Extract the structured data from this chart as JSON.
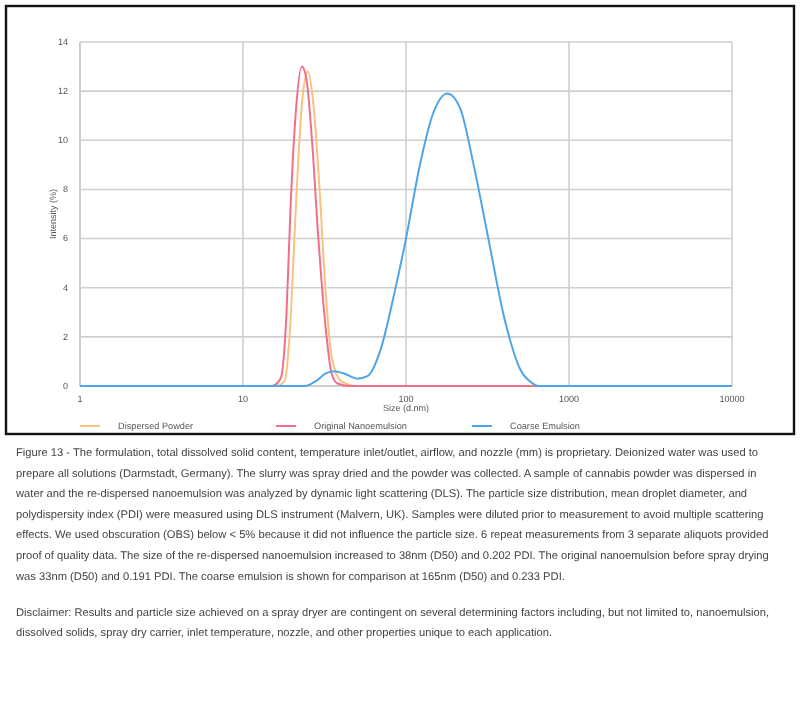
{
  "chart_data": {
    "type": "line",
    "xlabel": "Size (d.nm)",
    "ylabel": "Intensity (%)",
    "log": "x",
    "xlim": [
      1,
      10000
    ],
    "xticks": [
      1,
      10,
      100,
      1000,
      10000
    ],
    "ylim": [
      0,
      14
    ],
    "yticks": [
      0,
      2,
      4,
      6,
      8,
      10,
      12,
      14
    ],
    "grid": true,
    "legend": "bottom",
    "marker": "none",
    "line_style": "solid",
    "series": [
      {
        "name": "Dispersed Powder",
        "color": "#f8c37e",
        "x": [
          1,
          16,
          18,
          19.5,
          21,
          23,
          25,
          27,
          29.5,
          32,
          35,
          40,
          50,
          10000
        ],
        "values": [
          0,
          0,
          0.2,
          2.5,
          7,
          11.5,
          12.8,
          11.5,
          8,
          4,
          1.2,
          0.2,
          0,
          0
        ]
      },
      {
        "name": "Original Nanoemulsion",
        "color": "#f0708c",
        "x": [
          1,
          15,
          17,
          18.5,
          19.5,
          21,
          23,
          24.5,
          26.5,
          29,
          32,
          35,
          38,
          45,
          10000
        ],
        "values": [
          0,
          0,
          0.3,
          3,
          7,
          11,
          13,
          12.5,
          10,
          6,
          2.5,
          0.5,
          0.1,
          0,
          0
        ]
      },
      {
        "name": "Coarse Emulsion",
        "color": "#4ea5e8",
        "x": [
          1,
          24,
          28,
          32,
          36,
          42,
          50,
          58,
          70,
          85,
          100,
          120,
          145,
          180,
          215,
          260,
          320,
          400,
          500,
          600,
          650,
          10000
        ],
        "values": [
          0,
          0,
          0.2,
          0.5,
          0.6,
          0.5,
          0.3,
          0.4,
          1.5,
          3.8,
          6,
          8.8,
          11,
          11.9,
          11.3,
          9,
          6,
          2.8,
          0.7,
          0.1,
          0,
          0
        ]
      }
    ],
    "annotations": [
      "Figure 13 - The formulation, total dissolved solid content, temperature inlet/outlet, airflow, and nozzle (mm) is proprietary. Deionized water was used to prepare all solutions (Darmstadt, Germany). The slurry was spray dried and the powder was collected. A sample of cannabis powder was dispersed in water and the re-dispersed nanoemulsion was analyzed by dynamic light scattering (DLS). The particle size distribution, mean droplet diameter, and polydispersity index (PDI) were measured using DLS instrument (Malvern, UK). Samples were diluted prior to measurement to avoid multiple scattering effects. We used obscuration (OBS) below < 5% because it did not influence the particle size. 6 repeat measurements from 3 separate aliquots provided proof of quality data. The size of the re-dispersed nanoemulsion increased to 38nm (D50) and 0.202 PDI. The original nanoemulsion before spray drying was 33nm (D50) and 0.191 PDI. The coarse emulsion is shown for comparison at 165nm (D50) and 0.233 PDI.",
      "Disclaimer: Results and particle size achieved on a spray dryer are contingent on several determining factors including, but not limited to, nanoemulsion, dissolved solids, spray dry carrier, inlet temperature, nozzle, and other properties unique to each application."
    ]
  }
}
